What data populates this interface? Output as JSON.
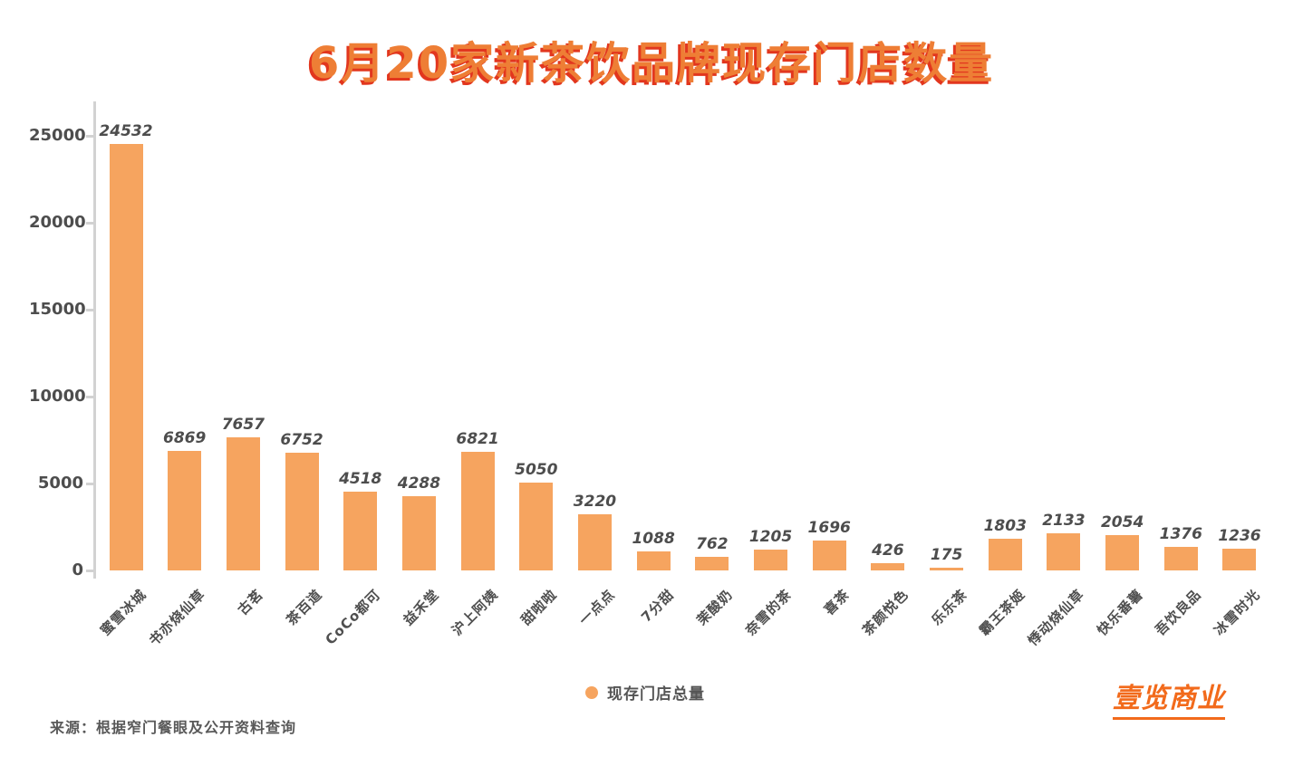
{
  "title": "6月20家新茶饮品牌现存门店数量",
  "legend": {
    "label": "现存门店总量"
  },
  "source": "来源：根据窄门餐眼及公开资料查询",
  "logo": "壹览商业",
  "colors": {
    "bar": "#F6A45F",
    "title": "#EE7E35",
    "title_shadow": "#E2361E",
    "axis": "#D2D2D2",
    "value_label": "#4D4D4D",
    "tick_label": "#4D4D4D",
    "logo": "#F26A1B"
  },
  "chart_data": {
    "type": "bar",
    "title": "6月20家新茶饮品牌现存门店数量",
    "categories": [
      "蜜雪冰城",
      "书亦烧仙草",
      "古茗",
      "茶百道",
      "CoCo都可",
      "益禾堂",
      "沪上阿姨",
      "甜啦啦",
      "一点点",
      "7分甜",
      "茉酸奶",
      "奈雪的茶",
      "喜茶",
      "茶颜悦色",
      "乐乐茶",
      "霸王茶姬",
      "悸动烧仙草",
      "快乐番薯",
      "吾饮良品",
      "冰雪时光"
    ],
    "values": [
      24532,
      6869,
      7657,
      6752,
      4518,
      4288,
      6821,
      5050,
      3220,
      1088,
      762,
      1205,
      1696,
      426,
      175,
      1803,
      2133,
      2054,
      1376,
      1236
    ],
    "series_name": "现存门店总量",
    "xlabel": "",
    "ylabel": "",
    "ylim": [
      0,
      25000
    ],
    "yticks": [
      0,
      5000,
      10000,
      15000,
      20000,
      25000
    ],
    "grid": false,
    "legend_position": "bottom-center",
    "bar_label_style": "bold-italic-above-bar",
    "xtick_rotation": 45
  }
}
